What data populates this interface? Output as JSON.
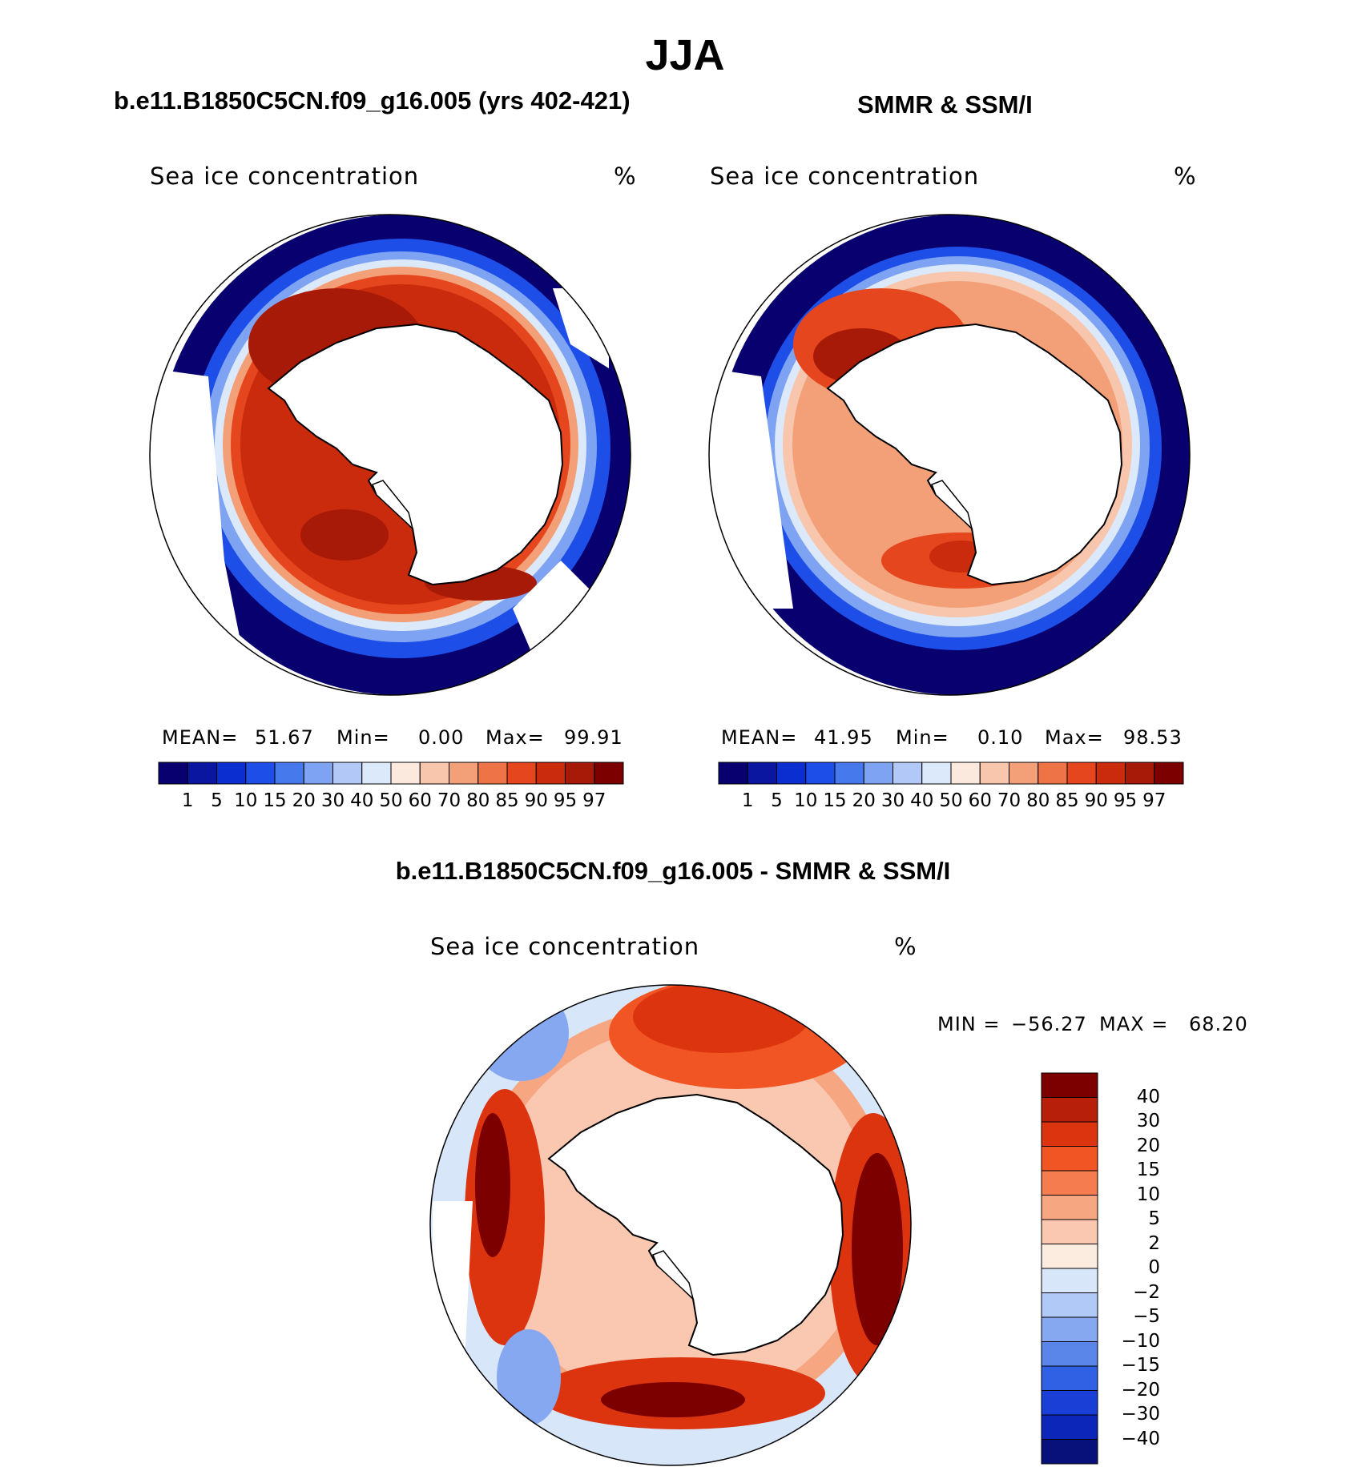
{
  "title": "JJA",
  "panels": [
    {
      "title": "b.e11.B1850C5CN.f09_g16.005 (yrs 402-421)",
      "field_label": "Sea ice concentration",
      "unit": "%",
      "mean_label": "MEAN=",
      "mean": "51.67",
      "min_label": "Min=",
      "min": "0.00",
      "max_label": "Max=",
      "max": "99.91"
    },
    {
      "title": "SMMR & SSM/I",
      "field_label": "Sea ice concentration",
      "unit": "%",
      "mean_label": "MEAN=",
      "mean": "41.95",
      "min_label": "Min=",
      "min": "0.10",
      "max_label": "Max=",
      "max": "98.53"
    }
  ],
  "colorbar": {
    "levels": [
      "1",
      "5",
      "10",
      "15",
      "20",
      "30",
      "40",
      "50",
      "60",
      "70",
      "80",
      "85",
      "90",
      "95",
      "97"
    ],
    "colors": [
      "#08006f",
      "#0a169f",
      "#0b2ed0",
      "#1e4ee8",
      "#4679ec",
      "#7da3f2",
      "#b2c9f7",
      "#dce9fa",
      "#fce9dd",
      "#f8c6ac",
      "#f3a078",
      "#ee7448",
      "#e5461d",
      "#c92b0c",
      "#a81a08",
      "#7d0000"
    ]
  },
  "difference": {
    "title": "b.e11.B1850C5CN.f09_g16.005 - SMMR & SSM/I",
    "field_label": "Sea ice concentration",
    "unit": "%",
    "min_label": "MIN =",
    "min": "−56.27",
    "max_label": "MAX =",
    "max": "68.20",
    "levels": [
      "40",
      "30",
      "20",
      "15",
      "10",
      "5",
      "2",
      "0",
      "−2",
      "−5",
      "−10",
      "−15",
      "−20",
      "−30",
      "−40"
    ],
    "colors": [
      "#7d0000",
      "#b81f0b",
      "#dd3410",
      "#f15524",
      "#f47c4f",
      "#f7a682",
      "#fac8b1",
      "#fcebdf",
      "#d8e6fa",
      "#b0c9f6",
      "#86a8f1",
      "#5a86ea",
      "#3060e4",
      "#1a3fd6",
      "#0b26b8",
      "#08107a"
    ]
  }
}
